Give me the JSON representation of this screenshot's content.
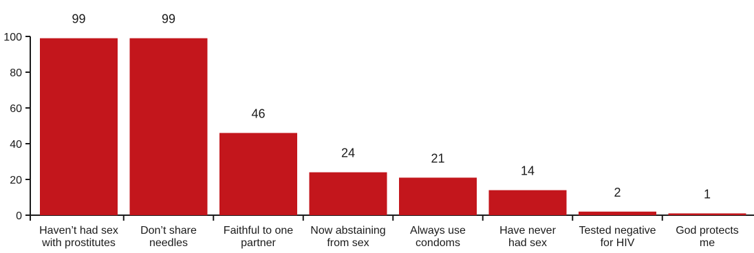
{
  "chart_data": {
    "type": "bar",
    "title": "",
    "xlabel": "",
    "ylabel": "",
    "ylim": [
      0,
      100
    ],
    "yticks": [
      0,
      20,
      40,
      60,
      80,
      100
    ],
    "grid": false,
    "legend": "none",
    "bar_color": "#c3161c",
    "categories": [
      [
        "Haven’t had sex",
        "with prostitutes"
      ],
      [
        "Don’t share",
        "needles"
      ],
      [
        "Faithful to one",
        "partner"
      ],
      [
        "Now abstaining",
        "from sex"
      ],
      [
        "Always use",
        "condoms"
      ],
      [
        "Have never",
        "had sex"
      ],
      [
        "Tested negative",
        "for HIV"
      ],
      [
        "God protects",
        "me"
      ]
    ],
    "values": [
      99,
      99,
      46,
      24,
      21,
      14,
      2,
      1
    ]
  }
}
